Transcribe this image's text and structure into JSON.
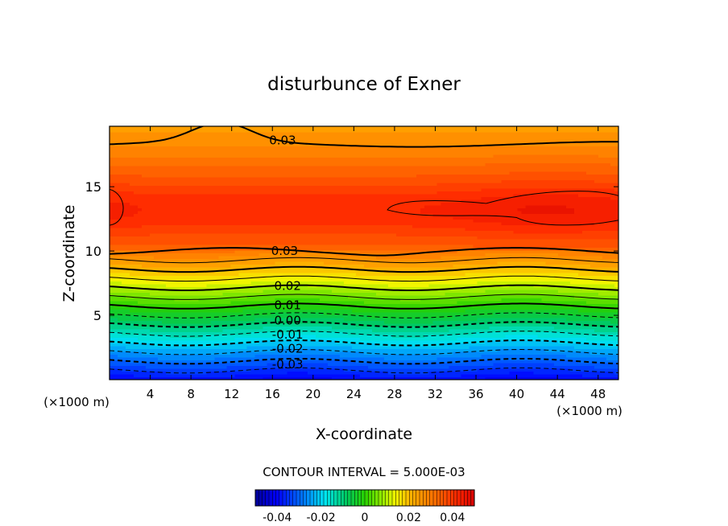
{
  "chart_data": {
    "type": "contour",
    "title": "disturbunce of Exner",
    "xlabel": "X-coordinate",
    "ylabel": "Z-coordinate",
    "x_unit_left": "(×1000 m)",
    "x_unit_right": "(×1000 m)",
    "xlim": [
      0,
      50
    ],
    "ylim": [
      0,
      19.7
    ],
    "x_ticks": [
      4,
      8,
      12,
      16,
      20,
      24,
      28,
      32,
      36,
      40,
      44,
      48
    ],
    "x_tick_labels": [
      "4",
      "8",
      "12",
      "16",
      "20",
      "24",
      "28",
      "32",
      "36",
      "40",
      "44",
      "48"
    ],
    "y_ticks": [
      5,
      10,
      15
    ],
    "y_tick_labels": [
      "5",
      "10",
      "15"
    ],
    "contour_interval_text": "CONTOUR INTERVAL = 5.000E-03",
    "contour_levels": [
      -0.035,
      -0.03,
      -0.025,
      -0.02,
      -0.015,
      -0.01,
      -0.005,
      0.0,
      0.005,
      0.01,
      0.015,
      0.02,
      0.025,
      0.03,
      0.035
    ],
    "contour_labels": [
      {
        "text": "-0.03",
        "x": 17.5,
        "z": 1.2
      },
      {
        "text": "-0.02",
        "x": 17.5,
        "z": 2.4
      },
      {
        "text": "-0.01",
        "x": 17.5,
        "z": 3.5
      },
      {
        "text": "0.00",
        "x": 17.5,
        "z": 4.6
      },
      {
        "text": "0.01",
        "x": 17.5,
        "z": 5.8
      },
      {
        "text": "0.02",
        "x": 17.5,
        "z": 7.3
      },
      {
        "text": "0.03",
        "x": 17.2,
        "z": 10.0
      },
      {
        "text": "0.03",
        "x": 17.0,
        "z": 18.6
      }
    ],
    "colorbar": {
      "range": [
        -0.05,
        0.05
      ],
      "ticks": [
        -0.04,
        -0.02,
        0,
        0.02,
        0.04
      ],
      "tick_labels": [
        "-0.04",
        "-0.02",
        "0",
        "0.02",
        "0.04"
      ]
    }
  }
}
